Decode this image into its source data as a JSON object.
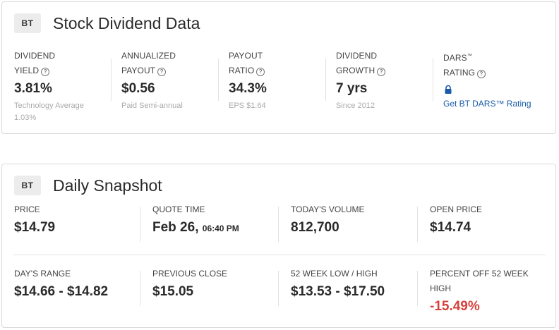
{
  "dividend_card": {
    "badge": "BT",
    "title": "Stock Dividend Data",
    "metrics": [
      {
        "label_1": "DIVIDEND",
        "label_2": "YIELD",
        "value": "3.81%",
        "note": "Technology Average 1.03%"
      },
      {
        "label_1": "ANNUALIZED",
        "label_2": "PAYOUT",
        "value": "$0.56",
        "note": "Paid Semi-annual"
      },
      {
        "label_1": "PAYOUT",
        "label_2": "RATIO",
        "value": "34.3%",
        "note": "EPS $1.64"
      },
      {
        "label_1": "DIVIDEND",
        "label_2": "GROWTH",
        "value": "7 yrs",
        "note": "Since 2012"
      }
    ],
    "dars": {
      "label_1": "DARS",
      "label_2": "RATING",
      "tm": "™",
      "link_text": "Get BT DARS™ Rating",
      "lock_icon": "lock-icon"
    }
  },
  "snapshot_card": {
    "badge": "BT",
    "title": "Daily Snapshot",
    "row1": [
      {
        "label": "PRICE",
        "value": "$14.79"
      },
      {
        "label": "QUOTE TIME",
        "value": "Feb 26,",
        "value_small": "06:40 PM"
      },
      {
        "label": "TODAY'S VOLUME",
        "value": "812,700"
      },
      {
        "label": "OPEN PRICE",
        "value": "$14.74"
      }
    ],
    "row2": [
      {
        "label": "DAY'S RANGE",
        "value": "$14.66 - $14.82"
      },
      {
        "label": "PREVIOUS CLOSE",
        "value": "$15.05"
      },
      {
        "label": "52 WEEK LOW / HIGH",
        "value": "$13.53 - $17.50"
      },
      {
        "label_1": "PERCENT OFF 52 WEEK",
        "label_2": "HIGH",
        "value": "-15.49%"
      }
    ]
  },
  "colors": {
    "negative": "#d6423a",
    "link": "#1a5aa8"
  }
}
